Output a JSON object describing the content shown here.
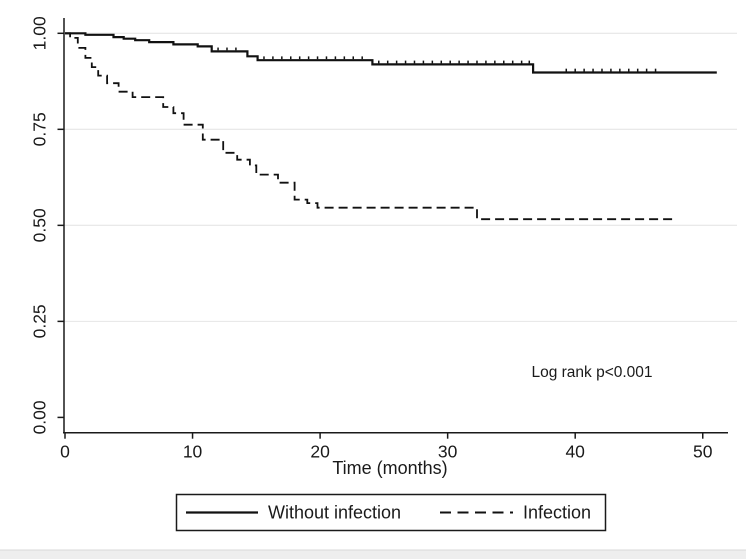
{
  "figure": {
    "background": "#ffffff",
    "axis_color": "#1a1a1a",
    "curve_color": "#111111",
    "gridline_color": "#e6e6e6",
    "bottom_strip_color": "#eeeeee",
    "bottom_strip_border": "#d8d8d8"
  },
  "chart_data": {
    "type": "line",
    "subtype": "kaplan_meier_step",
    "title": "",
    "xlabel": "Time (months)",
    "ylabel": "",
    "xlim": [
      0,
      52
    ],
    "ylim": [
      0.0,
      1.0
    ],
    "grid": true,
    "grid_values": [
      1.0,
      0.75,
      0.5,
      0.25
    ],
    "x_ticks": [
      0,
      10,
      20,
      30,
      40,
      50
    ],
    "y_ticks": [
      1.0,
      0.75,
      0.5,
      0.25,
      0.0
    ],
    "y_tick_labels": [
      "1.00",
      "0.75",
      "0.50",
      "0.25",
      "0.00"
    ],
    "legend_position": "bottom",
    "annotation": "Log rank p<0.001",
    "series": [
      {
        "name": "Without infection",
        "line_style": "solid",
        "points": [
          [
            0,
            1.0
          ],
          [
            1.6,
            0.996
          ],
          [
            3.8,
            0.99
          ],
          [
            4.6,
            0.986
          ],
          [
            5.5,
            0.982
          ],
          [
            6.6,
            0.977
          ],
          [
            8.5,
            0.971
          ],
          [
            10.4,
            0.966
          ],
          [
            11.5,
            0.953
          ],
          [
            14.3,
            0.94
          ],
          [
            15.1,
            0.93
          ],
          [
            24.1,
            0.919
          ],
          [
            36.7,
            0.898
          ],
          [
            51.1,
            0.898
          ]
        ],
        "censor_times": [
          12.0,
          12.7,
          13.4,
          15.6,
          16.3,
          17.0,
          17.7,
          18.4,
          19.1,
          19.8,
          20.5,
          21.2,
          21.9,
          22.6,
          23.3,
          24.6,
          25.3,
          26.0,
          26.7,
          27.4,
          28.1,
          28.8,
          29.5,
          30.2,
          30.9,
          31.6,
          32.3,
          33.0,
          33.7,
          34.4,
          35.1,
          35.8,
          36.4,
          39.3,
          40.0,
          40.7,
          41.4,
          42.1,
          42.8,
          43.5,
          44.2,
          44.9,
          45.6,
          46.3
        ]
      },
      {
        "name": "Infection",
        "line_style": "dashed",
        "points": [
          [
            0,
            1.0
          ],
          [
            0.4,
            0.988
          ],
          [
            1.0,
            0.962
          ],
          [
            1.6,
            0.936
          ],
          [
            2.1,
            0.912
          ],
          [
            2.6,
            0.89
          ],
          [
            3.3,
            0.87
          ],
          [
            4.2,
            0.848
          ],
          [
            5.3,
            0.834
          ],
          [
            7.7,
            0.808
          ],
          [
            8.5,
            0.792
          ],
          [
            9.3,
            0.762
          ],
          [
            10.8,
            0.723
          ],
          [
            12.4,
            0.689
          ],
          [
            13.5,
            0.671
          ],
          [
            14.5,
            0.656
          ],
          [
            15.0,
            0.632
          ],
          [
            16.7,
            0.611
          ],
          [
            18.0,
            0.567
          ],
          [
            19.0,
            0.558
          ],
          [
            19.8,
            0.546
          ],
          [
            32.3,
            0.516
          ],
          [
            47.7,
            0.516
          ]
        ],
        "censor_times": []
      }
    ]
  }
}
